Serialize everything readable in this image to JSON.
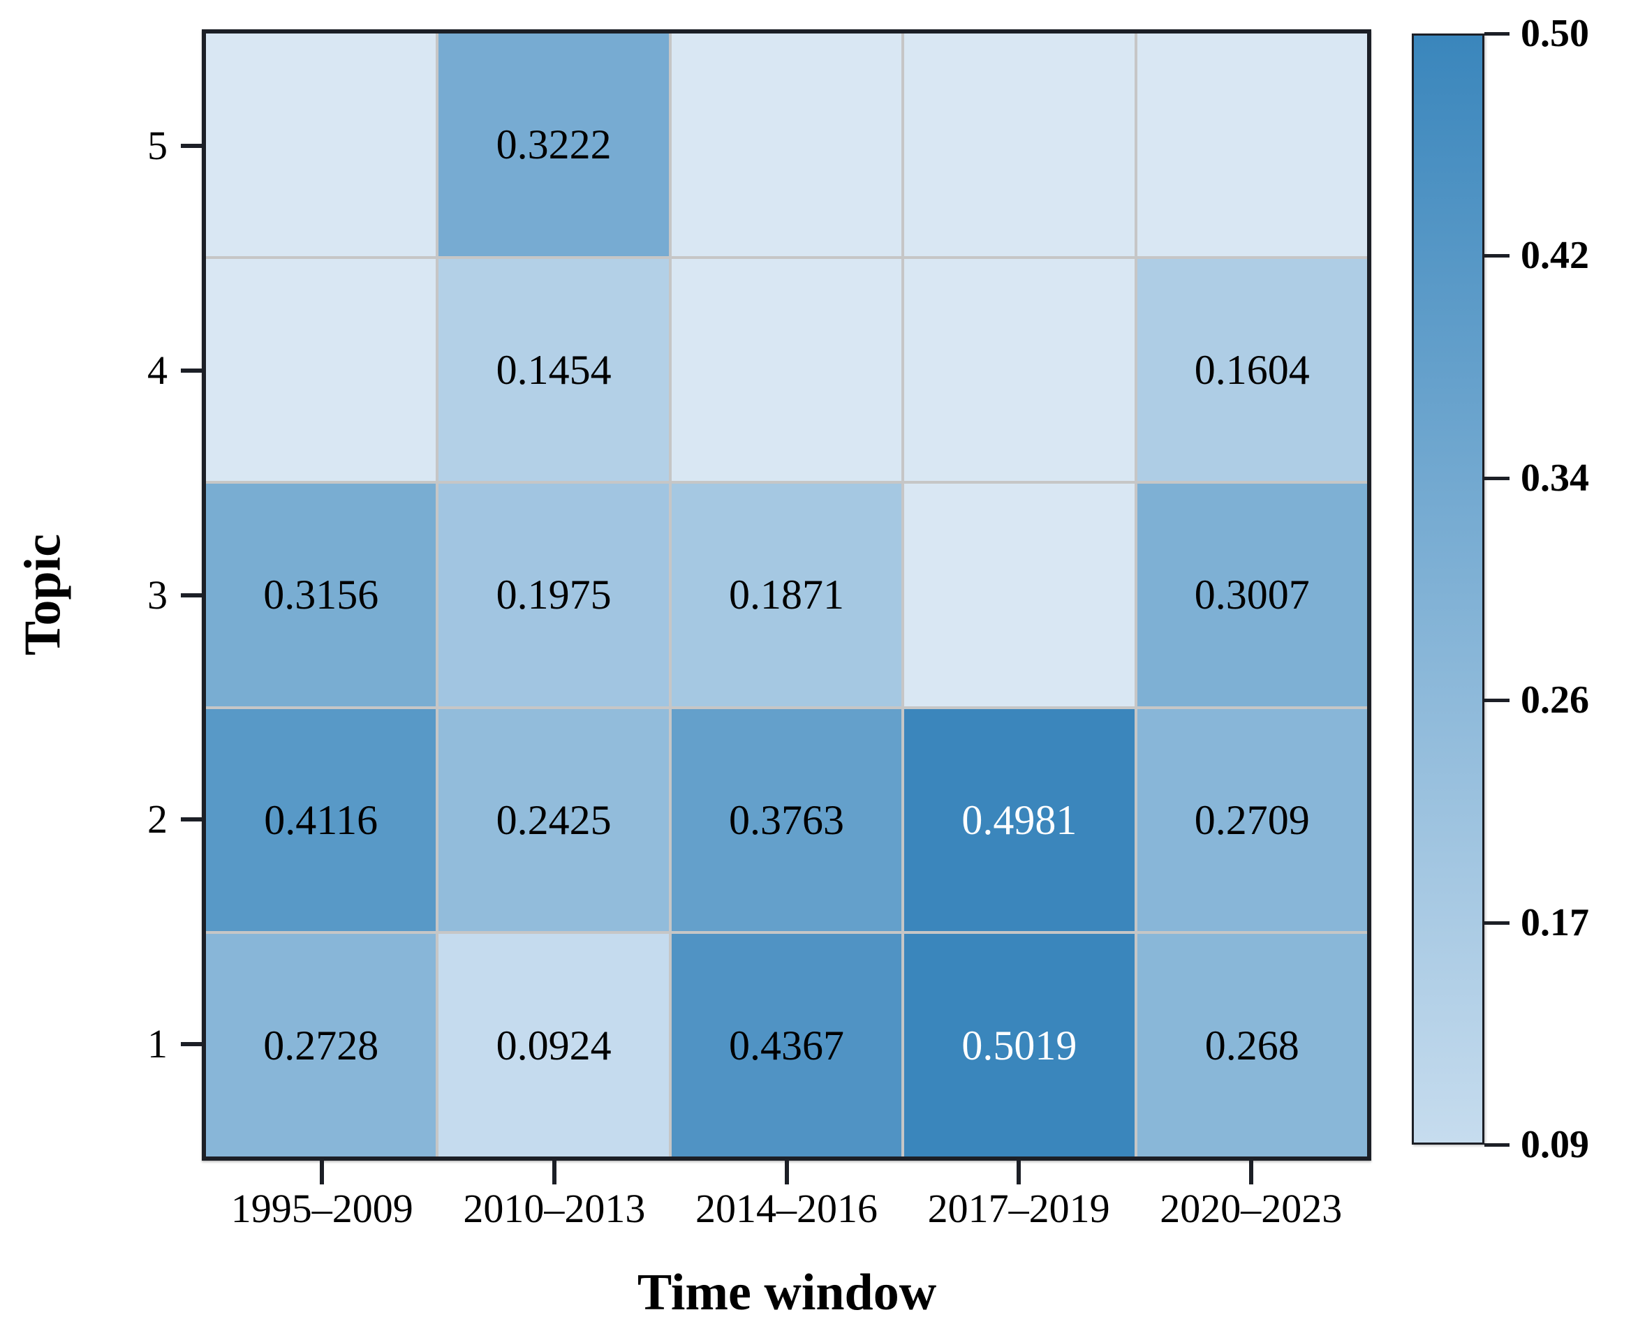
{
  "chart_data": {
    "type": "heatmap",
    "title": "",
    "xlabel": "Time window",
    "ylabel": "Topic",
    "x_categories": [
      "1995–2009",
      "2010–2013",
      "2014–2016",
      "2017–2019",
      "2020–2023"
    ],
    "y_categories_top_to_bottom": [
      "5",
      "4",
      "3",
      "2",
      "1"
    ],
    "matrix_display_top_to_bottom": [
      [
        null,
        "0.3222",
        null,
        null,
        null
      ],
      [
        null,
        "0.1454",
        null,
        null,
        "0.1604"
      ],
      [
        "0.3156",
        "0.1975",
        "0.1871",
        null,
        "0.3007"
      ],
      [
        "0.4116",
        "0.2425",
        "0.3763",
        "0.4981",
        "0.2709"
      ],
      [
        "0.2728",
        "0.0924",
        "0.4367",
        "0.5019",
        "0.268"
      ]
    ],
    "vmin": 0.09,
    "vmax": 0.5,
    "white_text_threshold": 0.45,
    "colorbar_tick_labels_top_to_bottom": [
      "0.50",
      "0.42",
      "0.34",
      "0.26",
      "0.17",
      "0.09"
    ],
    "legend_position": "right-colorbar",
    "grid": "cell-borders-only"
  },
  "colors": {
    "colorbar_top": "#3a86bc",
    "colorbar_bottom": "#c6dcee",
    "empty_cell": "#d9e7f3",
    "grid_line": "#c6c6c6",
    "frame": "#1c1f26",
    "cell_text_dark": "#000000",
    "cell_text_light": "#ffffff"
  }
}
